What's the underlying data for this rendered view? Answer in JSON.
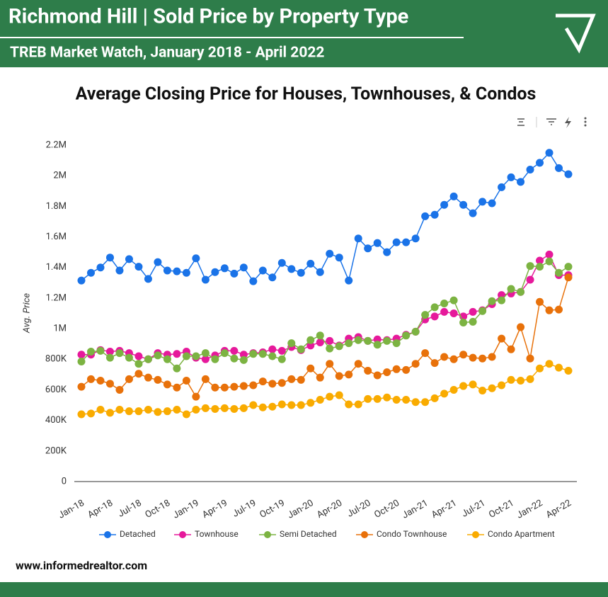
{
  "header": {
    "title": "Richmond Hill | Sold Price by Property Type",
    "subtitle": "TREB Market Watch, January 2018 - April 2022"
  },
  "chart_data": {
    "type": "line",
    "title": "Average Closing Price for Houses, Townhouses, & Condos",
    "y_label": "Avg. Price",
    "categories": [
      "Jan-18",
      null,
      null,
      "Apr-18",
      null,
      null,
      "Jul-18",
      null,
      null,
      "Oct-18",
      null,
      null,
      "Jan-19",
      null,
      null,
      "Apr-19",
      null,
      null,
      "Jul-19",
      null,
      null,
      "Oct-19",
      null,
      null,
      "Jan-20",
      null,
      null,
      "Apr-20",
      null,
      null,
      "Jul-20",
      null,
      null,
      "Oct-20",
      null,
      null,
      "Jan-21",
      null,
      null,
      "Apr-21",
      null,
      null,
      "Jul-21",
      null,
      null,
      "Oct-21",
      null,
      null,
      "Jan-22",
      null,
      null,
      "Apr-22"
    ],
    "ylim": [
      0,
      2200000
    ],
    "yticks": [
      0,
      {
        "value": 200000,
        "label": "200K"
      },
      {
        "value": 400000,
        "label": "400K"
      },
      {
        "value": 600000,
        "label": "600K"
      },
      {
        "value": 800000,
        "label": "800K"
      },
      {
        "value": 1000000,
        "label": "1M"
      },
      {
        "value": 1200000,
        "label": "1.2M"
      },
      {
        "value": 1400000,
        "label": "1.4M"
      },
      {
        "value": 1600000,
        "label": "1.6M"
      },
      {
        "value": 1800000,
        "label": "1.8M"
      },
      {
        "value": 2000000,
        "label": "2M"
      },
      {
        "value": 2200000,
        "label": "2.2M"
      }
    ],
    "grid": false,
    "legend": "bottom",
    "series": [
      {
        "name": "Detached",
        "color": "#1a73e8",
        "values": [
          1315000,
          1365000,
          1400000,
          1465000,
          1380000,
          1455000,
          1405000,
          1325000,
          1435000,
          1380000,
          1375000,
          1365000,
          1460000,
          1320000,
          1370000,
          1395000,
          1360000,
          1400000,
          1310000,
          1380000,
          1335000,
          1430000,
          1390000,
          1365000,
          1425000,
          1370000,
          1490000,
          1465000,
          1315000,
          1590000,
          1525000,
          1560000,
          1500000,
          1565000,
          1565000,
          1590000,
          1735000,
          1745000,
          1810000,
          1865000,
          1810000,
          1755000,
          1830000,
          1820000,
          1925000,
          1990000,
          1960000,
          2040000,
          2085000,
          2150000,
          2050000,
          2010000
        ]
      },
      {
        "name": "Townhouse",
        "color": "#e6199b",
        "values": [
          830000,
          830000,
          860000,
          850000,
          855000,
          840000,
          820000,
          800000,
          840000,
          830000,
          835000,
          850000,
          810000,
          800000,
          825000,
          855000,
          855000,
          830000,
          840000,
          845000,
          865000,
          855000,
          880000,
          860000,
          890000,
          910000,
          920000,
          890000,
          935000,
          945000,
          920000,
          930000,
          925000,
          935000,
          960000,
          980000,
          1060000,
          1080000,
          1110000,
          1100000,
          1080000,
          1110000,
          1120000,
          1160000,
          1220000,
          1230000,
          1240000,
          1320000,
          1445000,
          1485000,
          1350000,
          1350000
        ]
      },
      {
        "name": "Semi Detached",
        "color": "#7cb342",
        "values": [
          785000,
          850000,
          855000,
          810000,
          840000,
          810000,
          770000,
          800000,
          825000,
          800000,
          740000,
          820000,
          820000,
          840000,
          800000,
          840000,
          805000,
          795000,
          835000,
          835000,
          820000,
          800000,
          905000,
          865000,
          925000,
          955000,
          870000,
          885000,
          905000,
          925000,
          920000,
          895000,
          920000,
          905000,
          955000,
          980000,
          1090000,
          1140000,
          1165000,
          1185000,
          1040000,
          1045000,
          1115000,
          1180000,
          1185000,
          1260000,
          1240000,
          1410000,
          1405000,
          1440000,
          1365000,
          1405000
        ]
      },
      {
        "name": "Condo Townhouse",
        "color": "#e8710a",
        "values": [
          620000,
          670000,
          660000,
          640000,
          600000,
          670000,
          705000,
          680000,
          665000,
          635000,
          615000,
          660000,
          555000,
          670000,
          615000,
          615000,
          620000,
          625000,
          630000,
          655000,
          640000,
          645000,
          670000,
          665000,
          740000,
          680000,
          770000,
          690000,
          700000,
          770000,
          725000,
          695000,
          715000,
          735000,
          730000,
          770000,
          840000,
          775000,
          815000,
          800000,
          830000,
          810000,
          805000,
          815000,
          935000,
          865000,
          1010000,
          805000,
          1175000,
          1120000,
          1125000,
          1335000
        ]
      },
      {
        "name": "Condo Apartment",
        "color": "#f9ab00",
        "values": [
          440000,
          445000,
          470000,
          450000,
          470000,
          460000,
          460000,
          470000,
          455000,
          460000,
          470000,
          440000,
          470000,
          480000,
          475000,
          480000,
          475000,
          480000,
          500000,
          485000,
          490000,
          505000,
          500000,
          500000,
          515000,
          535000,
          555000,
          565000,
          505000,
          505000,
          540000,
          540000,
          550000,
          535000,
          535000,
          520000,
          520000,
          545000,
          575000,
          600000,
          625000,
          635000,
          595000,
          610000,
          630000,
          665000,
          660000,
          670000,
          740000,
          770000,
          745000,
          725000
        ]
      }
    ]
  },
  "footer": {
    "url": "www.informedrealtor.com"
  }
}
